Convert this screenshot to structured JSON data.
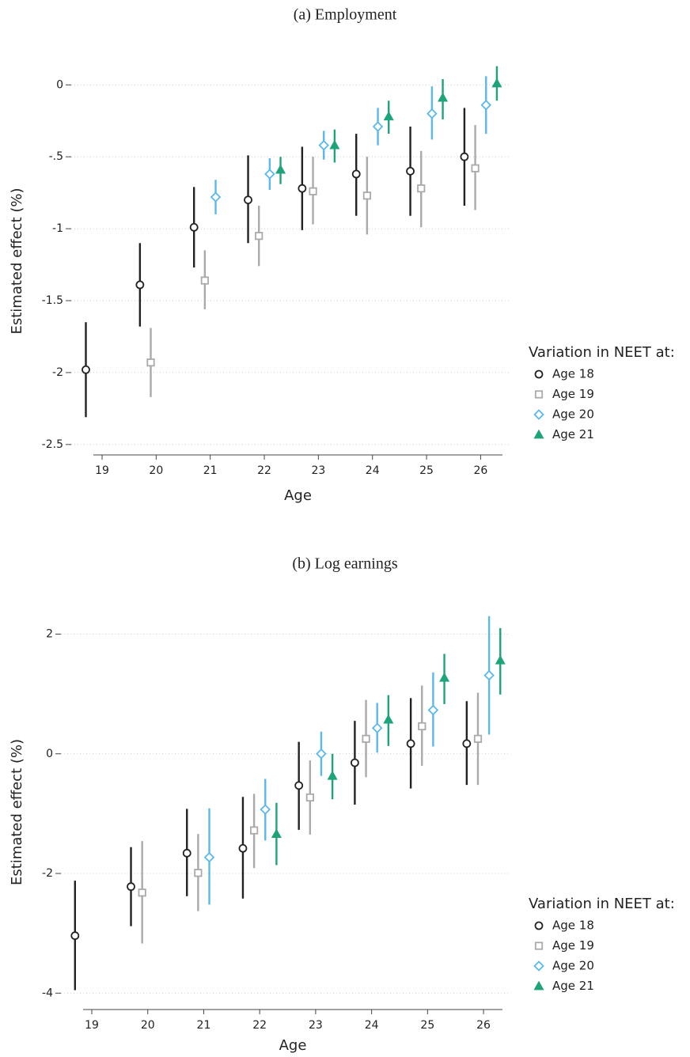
{
  "chart_data": [
    {
      "type": "errorbar",
      "title": "(a) Employment",
      "xlabel": "Age",
      "ylabel": "Estimated effect (%)",
      "legend_title": "Variation in NEET at:",
      "xlim": [
        18.4,
        26.55
      ],
      "ylim": [
        -2.6,
        0.15
      ],
      "xticks": [
        19,
        20,
        21,
        22,
        23,
        24,
        25,
        26
      ],
      "yticks": [
        0,
        {
          "value": -0.5,
          "label": "-.5"
        },
        -1,
        -1.5,
        -2,
        -2.5
      ],
      "grid": true,
      "series": [
        {
          "name": "Age 18",
          "color": "#222222",
          "marker": "circle",
          "x": [
            19,
            20,
            21,
            22,
            23,
            24,
            25,
            26
          ],
          "values": [
            -1.98,
            -1.39,
            -0.99,
            -0.8,
            -0.72,
            -0.62,
            -0.6,
            -0.5
          ],
          "lower": [
            -2.31,
            -1.68,
            -1.27,
            -1.1,
            -1.01,
            -0.91,
            -0.91,
            -0.84
          ],
          "upper": [
            -1.65,
            -1.1,
            -0.71,
            -0.49,
            -0.43,
            -0.34,
            -0.29,
            -0.16
          ]
        },
        {
          "name": "Age 19",
          "color": "#aaaaaa",
          "marker": "square",
          "x": [
            20,
            21,
            22,
            23,
            24,
            25,
            26
          ],
          "values": [
            -1.93,
            -1.36,
            -1.05,
            -0.74,
            -0.77,
            -0.72,
            -0.58
          ],
          "lower": [
            -2.17,
            -1.56,
            -1.26,
            -0.97,
            -1.04,
            -0.99,
            -0.87
          ],
          "upper": [
            -1.69,
            -1.15,
            -0.84,
            -0.5,
            -0.5,
            -0.46,
            -0.28
          ]
        },
        {
          "name": "Age 20",
          "color": "#5bb8ea",
          "marker": "diamond",
          "x": [
            21,
            22,
            23,
            24,
            25,
            26
          ],
          "values": [
            -0.78,
            -0.62,
            -0.42,
            -0.29,
            -0.2,
            -0.14
          ],
          "lower": [
            -0.9,
            -0.73,
            -0.52,
            -0.42,
            -0.38,
            -0.34
          ],
          "upper": [
            -0.66,
            -0.51,
            -0.32,
            -0.16,
            -0.01,
            0.06
          ]
        },
        {
          "name": "Age 21",
          "color": "#1fa37a",
          "marker": "triangle",
          "x": [
            22,
            23,
            24,
            25,
            26
          ],
          "values": [
            -0.59,
            -0.42,
            -0.22,
            -0.09,
            0.01
          ],
          "lower": [
            -0.69,
            -0.54,
            -0.34,
            -0.24,
            -0.11
          ],
          "upper": [
            -0.5,
            -0.31,
            -0.11,
            0.04,
            0.13
          ]
        }
      ]
    },
    {
      "type": "errorbar",
      "title": "(b) Log earnings",
      "xlabel": "Age",
      "ylabel": "Estimated effect (%)",
      "legend_title": "Variation in NEET at:",
      "xlim": [
        18.42,
        26.48
      ],
      "ylim": [
        -4.3,
        2.35
      ],
      "xticks": [
        19,
        20,
        21,
        22,
        23,
        24,
        25,
        26
      ],
      "yticks": [
        2,
        0,
        -2,
        -4
      ],
      "grid": true,
      "series": [
        {
          "name": "Age 18",
          "color": "#222222",
          "marker": "circle",
          "x": [
            19,
            20,
            21,
            22,
            23,
            24,
            25,
            26
          ],
          "values": [
            -3.04,
            -2.22,
            -1.66,
            -1.58,
            -0.53,
            -0.15,
            0.17,
            0.17
          ],
          "lower": [
            -3.95,
            -2.88,
            -2.38,
            -2.42,
            -1.27,
            -0.85,
            -0.58,
            -0.52
          ],
          "upper": [
            -2.12,
            -1.56,
            -0.92,
            -0.72,
            0.2,
            0.55,
            0.93,
            0.88
          ]
        },
        {
          "name": "Age 19",
          "color": "#aaaaaa",
          "marker": "square",
          "x": [
            20,
            21,
            22,
            23,
            24,
            25,
            26
          ],
          "values": [
            -2.32,
            -1.99,
            -1.28,
            -0.73,
            0.25,
            0.46,
            0.25
          ],
          "lower": [
            -3.17,
            -2.63,
            -1.91,
            -1.35,
            -0.39,
            -0.2,
            -0.52
          ],
          "upper": [
            -1.46,
            -1.34,
            -0.67,
            -0.11,
            0.9,
            1.14,
            1.02
          ]
        },
        {
          "name": "Age 20",
          "color": "#5bb8ea",
          "marker": "diamond",
          "x": [
            21,
            22,
            23,
            24,
            25,
            26
          ],
          "values": [
            -1.73,
            -0.93,
            0.0,
            0.43,
            0.73,
            1.31
          ],
          "lower": [
            -2.52,
            -1.45,
            -0.37,
            0.02,
            0.12,
            0.32
          ],
          "upper": [
            -0.91,
            -0.42,
            0.37,
            0.85,
            1.36,
            2.3
          ]
        },
        {
          "name": "Age 21",
          "color": "#1fa37a",
          "marker": "triangle",
          "x": [
            22,
            23,
            24,
            25,
            26
          ],
          "values": [
            -1.34,
            -0.37,
            0.57,
            1.27,
            1.56
          ],
          "lower": [
            -1.86,
            -0.76,
            0.13,
            0.83,
            0.99
          ],
          "upper": [
            -0.82,
            0.0,
            0.98,
            1.67,
            2.1
          ]
        }
      ]
    }
  ]
}
